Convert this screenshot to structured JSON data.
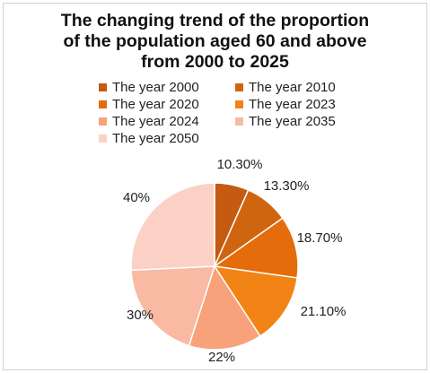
{
  "chart_data": {
    "type": "pie",
    "title": "The changing trend of the proportion of the population aged 60 and above from 2000 to 2025",
    "title_lines": [
      "The changing trend of the proportion",
      "of the population aged 60 and above",
      "from 2000 to 2025"
    ],
    "legend_position": "top",
    "categories": [
      "The year 2000",
      "The year 2010",
      "The year 2020",
      "The year 2023",
      "The year 2024",
      "The year 2035",
      "The year 2050"
    ],
    "values": [
      10.3,
      13.3,
      18.7,
      21.1,
      22,
      30,
      40
    ],
    "data_labels": [
      "10.30%",
      "13.30%",
      "18.70%",
      "21.10%",
      "22%",
      "30%",
      "40%"
    ],
    "colors": [
      "#C55A11",
      "#D0650F",
      "#E46C0A",
      "#F28415",
      "#F7A27A",
      "#F9B9A2",
      "#FBD1C6"
    ],
    "slice_stroke": "#ffffff"
  }
}
